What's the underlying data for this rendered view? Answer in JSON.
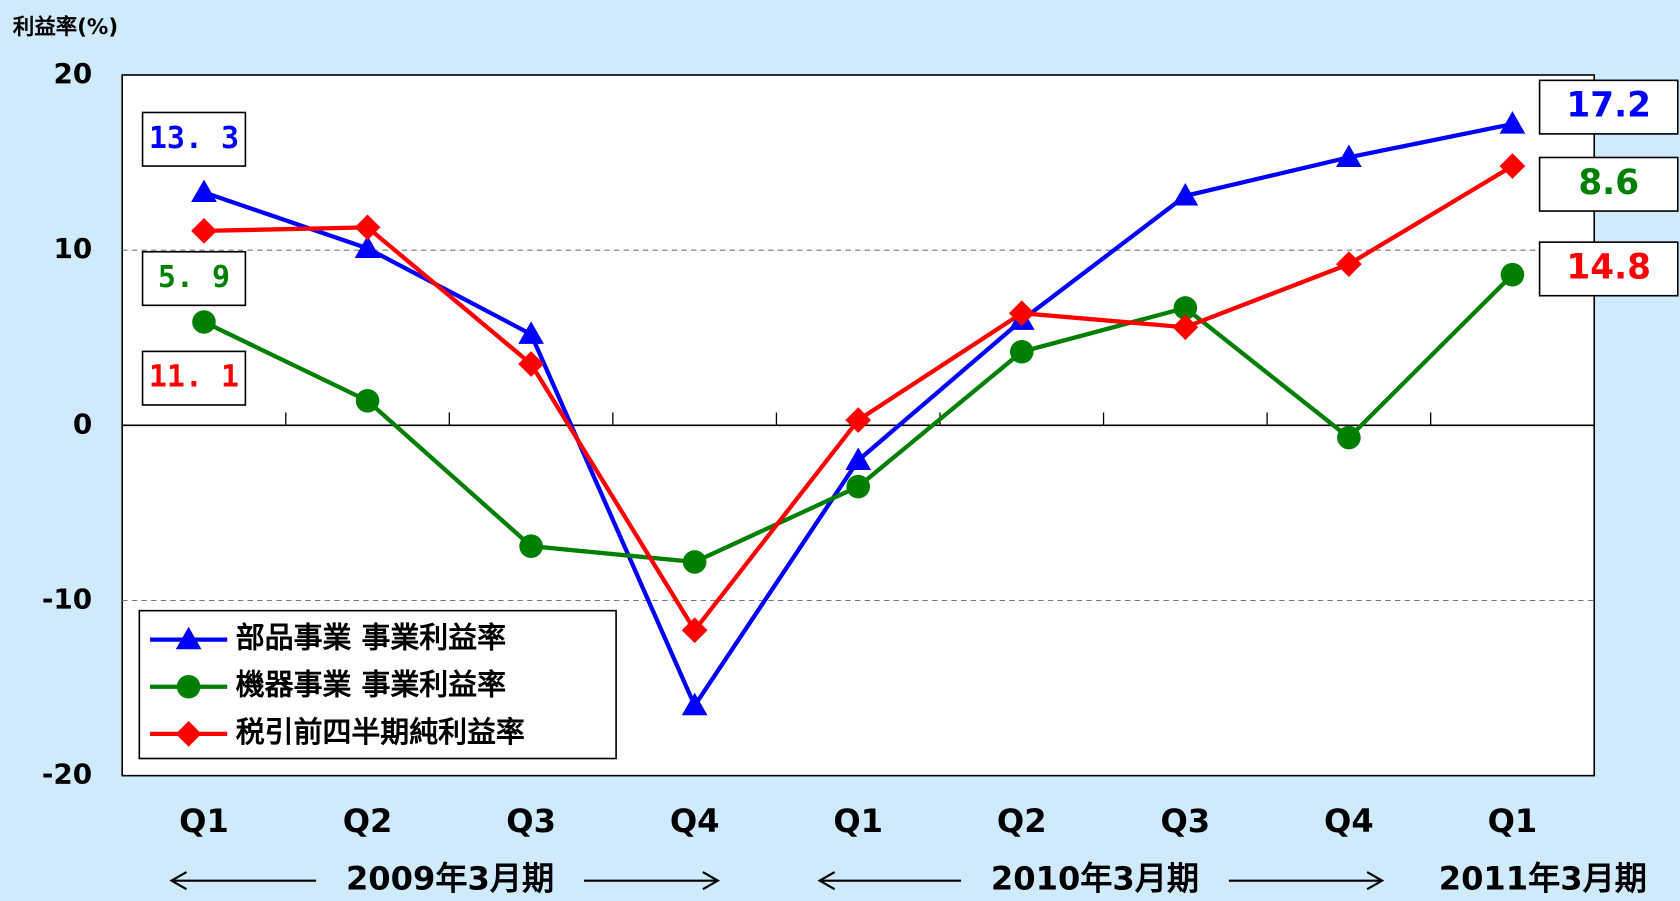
{
  "chart_data": {
    "type": "line",
    "y_label": "利益率(%)",
    "categories": [
      "Q1",
      "Q2",
      "Q3",
      "Q4",
      "Q1",
      "Q2",
      "Q3",
      "Q4",
      "Q1"
    ],
    "period_labels": [
      "2009年3月期",
      "2010年3月期",
      "2011年3月期"
    ],
    "series": [
      {
        "name": "部品事業 事業利益率",
        "color": "#0000ff",
        "marker": "triangle",
        "values": [
          13.3,
          10.1,
          5.2,
          -16.0,
          -2.0,
          6.0,
          13.1,
          15.3,
          17.2
        ],
        "value_labels": [
          "13. 3",
          null,
          null,
          null,
          null,
          null,
          null,
          null,
          "17.2"
        ]
      },
      {
        "name": "機器事業 事業利益率",
        "color": "#008000",
        "marker": "circle",
        "values": [
          5.9,
          1.4,
          -6.9,
          -7.8,
          -3.5,
          4.2,
          6.7,
          -0.7,
          8.6
        ],
        "value_labels": [
          "5. 9",
          null,
          null,
          null,
          null,
          null,
          null,
          null,
          "8.6"
        ]
      },
      {
        "name": "税引前四半期純利益率",
        "color": "#ff0000",
        "marker": "diamond",
        "values": [
          11.1,
          11.3,
          3.5,
          -11.7,
          0.3,
          6.4,
          5.6,
          9.2,
          14.8
        ],
        "value_labels": [
          "11. 1",
          null,
          null,
          null,
          null,
          null,
          null,
          null,
          "14.8"
        ]
      }
    ],
    "ylim": [
      -20,
      20
    ],
    "yticks": [
      -20,
      -10,
      0,
      10,
      20
    ],
    "grid": true,
    "legend": "lower left"
  }
}
